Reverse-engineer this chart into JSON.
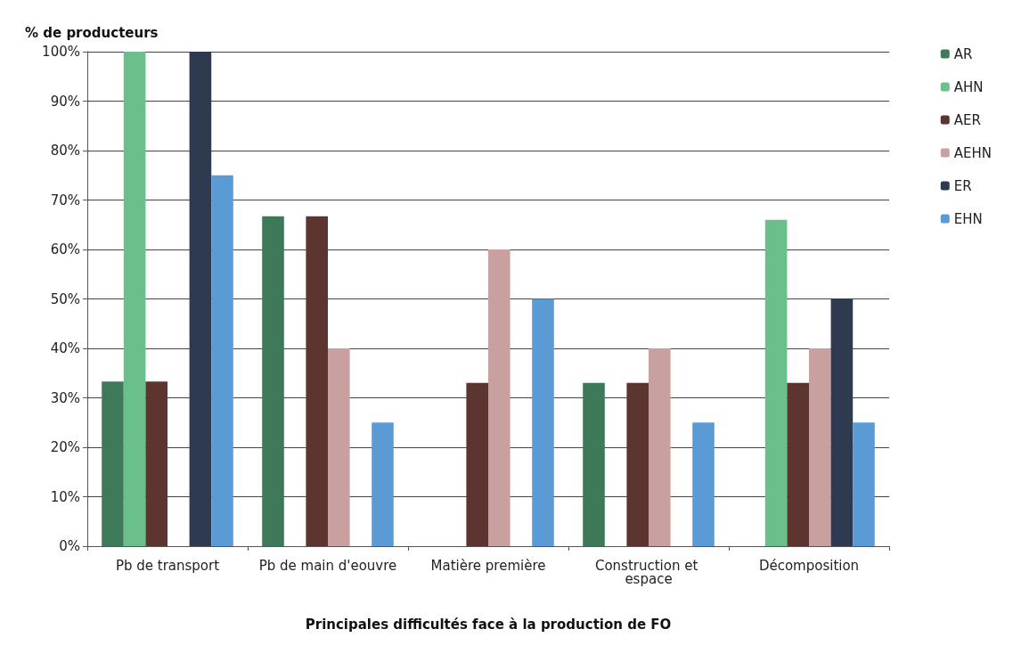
{
  "chart_data": {
    "type": "bar",
    "ylabel": "% de producteurs",
    "xlabel": "Principales difficultés face à la production de FO",
    "categories": [
      "Pb de transport",
      "Pb de main d'eouvre",
      "Matière première",
      "Construction et espace",
      "Décomposition"
    ],
    "series": [
      {
        "name": "AR",
        "color": "#3e7a5a",
        "values": [
          33.3,
          66.7,
          null,
          33,
          null
        ]
      },
      {
        "name": "AHN",
        "color": "#6abf8a",
        "values": [
          100,
          null,
          null,
          null,
          66
        ]
      },
      {
        "name": "AER",
        "color": "#5c3530",
        "values": [
          33.3,
          66.7,
          33,
          33,
          33
        ]
      },
      {
        "name": "AEHN",
        "color": "#c9a0a0",
        "values": [
          null,
          40,
          60,
          40,
          40
        ]
      },
      {
        "name": "ER",
        "color": "#2e3a50",
        "values": [
          100,
          null,
          null,
          null,
          50
        ]
      },
      {
        "name": "EHN",
        "color": "#5b9bd5",
        "values": [
          75,
          25,
          50,
          25,
          25
        ]
      }
    ],
    "ylim": [
      0,
      100
    ],
    "yticks": [
      {
        "value": 0,
        "label": "0%"
      },
      {
        "value": 10,
        "label": "10%"
      },
      {
        "value": 20,
        "label": "20%"
      },
      {
        "value": 30,
        "label": "30%"
      },
      {
        "value": 40,
        "label": "40%"
      },
      {
        "value": 50,
        "label": "50%"
      },
      {
        "value": 60,
        "label": "60%"
      },
      {
        "value": 70,
        "label": "70%"
      },
      {
        "value": 80,
        "label": "80%"
      },
      {
        "value": 90,
        "label": "90%"
      },
      {
        "value": 100,
        "label": "100%"
      }
    ],
    "grid": "y",
    "legend": "right"
  }
}
